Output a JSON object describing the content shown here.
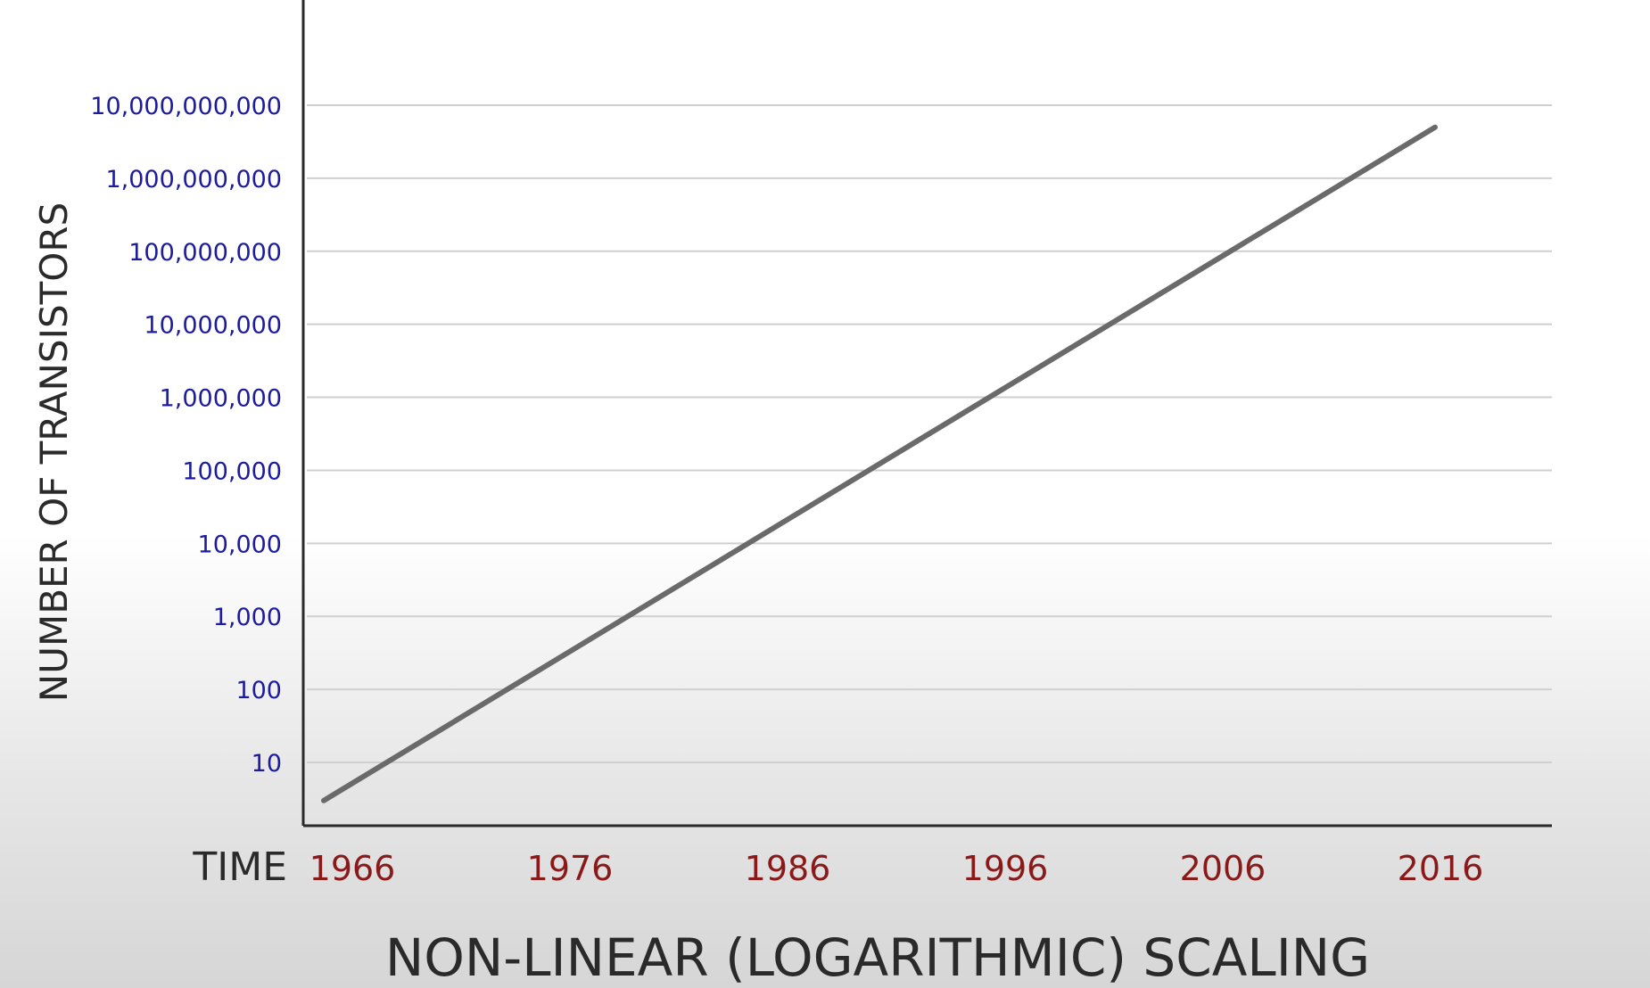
{
  "chart_data": {
    "type": "line",
    "title": "NON-LINEAR (LOGARITHMIC) SCALING",
    "xlabel": "TIME",
    "ylabel": "NUMBER OF TRANSISTORS",
    "y_scale": "log",
    "ylim": [
      1,
      10000000000
    ],
    "xlim": [
      1966,
      2016
    ],
    "x_ticks": [
      "1966",
      "1976",
      "1986",
      "1996",
      "2006",
      "2016"
    ],
    "y_ticks": [
      {
        "value": 10,
        "label": "10"
      },
      {
        "value": 100,
        "label": "100"
      },
      {
        "value": 1000,
        "label": "1,000"
      },
      {
        "value": 10000,
        "label": "10,000"
      },
      {
        "value": 100000,
        "label": "100,000"
      },
      {
        "value": 1000000,
        "label": "1,000,000"
      },
      {
        "value": 10000000,
        "label": "10,000,000"
      },
      {
        "value": 100000000,
        "label": "100,000,000"
      },
      {
        "value": 1000000000,
        "label": "1,000,000,000"
      },
      {
        "value": 10000000000,
        "label": "10,000,000,000"
      }
    ],
    "grid": true,
    "legend": "none",
    "series": [
      {
        "x": [
          1966,
          2016
        ],
        "y": [
          3,
          5000000000
        ],
        "color": "#6a6a6a"
      }
    ],
    "colors": {
      "y_tick_text": "#1c1c9c",
      "x_tick_text": "#8a1a1a",
      "axis_text": "#2a2a2a",
      "grid": "#cfcfcf",
      "axis": "#2a2a2a",
      "line": "#6a6a6a"
    }
  }
}
